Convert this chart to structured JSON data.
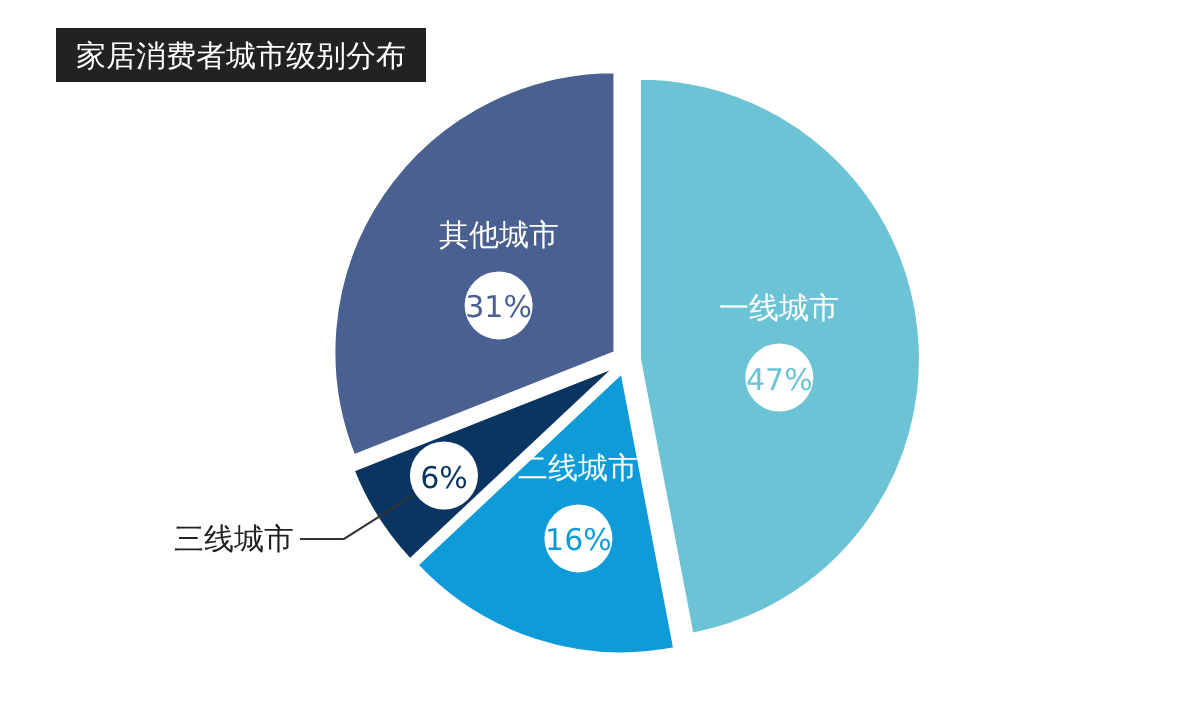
{
  "chart_data": {
    "type": "pie",
    "title": "家居消费者城市级别分布",
    "categories": [
      "一线城市",
      "二线城市",
      "三线城市",
      "其他城市"
    ],
    "values": [
      47,
      16,
      6,
      31
    ],
    "colors": [
      "#6cc3d5",
      "#0f9bd8",
      "#0a3560",
      "#4a6090"
    ],
    "value_labels": [
      "47%",
      "16%",
      "6%",
      "31%"
    ]
  }
}
